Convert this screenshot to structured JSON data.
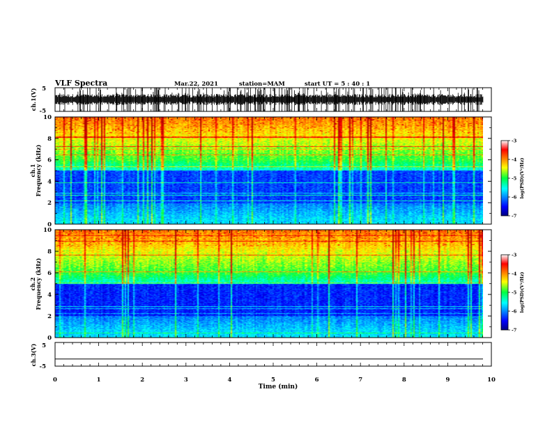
{
  "header": {
    "title": "VLF Spectra",
    "date": "Mar.22, 2021",
    "station": "station=MAM",
    "start": "start UT =  5 : 40 : 1"
  },
  "chart_data": [
    {
      "type": "line",
      "name": "ch1-waveform",
      "ylabel": "ch.1(V)",
      "ylim": [
        -5,
        5
      ],
      "yticks": [
        "5",
        "-5"
      ],
      "xlim": [
        0,
        10
      ],
      "trace": "dense bursts spanning nearly full range, end at ~9.85 min"
    },
    {
      "type": "heatmap",
      "name": "ch1-spectrogram",
      "ylabel": "Frequency (kHz)",
      "ylabel2": "ch.1",
      "ylim": [
        0,
        10
      ],
      "yticks": [
        "0",
        "2",
        "4",
        "6",
        "8",
        "10"
      ],
      "xlim": [
        0,
        10
      ],
      "colorbar": {
        "label": "log(PSD)(V²/Hz)",
        "range": [
          -7,
          -3
        ],
        "ticks": [
          "-3",
          "-4",
          "-5",
          "-6",
          "-7"
        ]
      }
    },
    {
      "type": "heatmap",
      "name": "ch2-spectrogram",
      "ylabel": "Frequency (kHz)",
      "ylabel2": "ch.2",
      "ylim": [
        0,
        10
      ],
      "yticks": [
        "0",
        "2",
        "4",
        "6",
        "8",
        "10"
      ],
      "xlim": [
        0,
        10
      ],
      "colorbar": {
        "label": "log(PSD)(V²/Hz)",
        "range": [
          -7,
          -3
        ],
        "ticks": [
          "-3",
          "-4",
          "-5",
          "-6",
          "-7"
        ]
      }
    },
    {
      "type": "line",
      "name": "ch3-waveform",
      "ylabel": "ch.3(V)",
      "ylim": [
        -5,
        5
      ],
      "yticks": [
        "5",
        "-5"
      ],
      "xlim": [
        0,
        10
      ],
      "value": -2.0
    }
  ],
  "xaxis": {
    "label": "Time (min)",
    "ticks": [
      "0",
      "1",
      "2",
      "3",
      "4",
      "5",
      "6",
      "7",
      "8",
      "9",
      "10"
    ]
  },
  "colors": {
    "spec_low": "#00008c",
    "spec_high": "#d00000"
  }
}
